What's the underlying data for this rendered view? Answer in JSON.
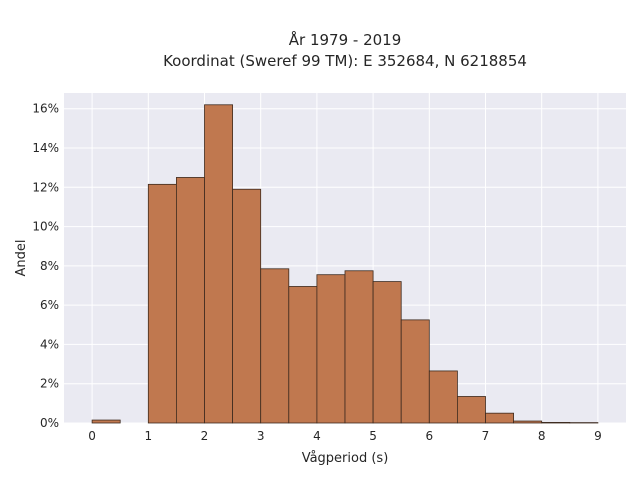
{
  "chart_data": {
    "type": "bar",
    "title_line1": "År 1979 - 2019",
    "title_line2": "Koordinat (Sweref 99 TM): E 352684, N 6218854",
    "xlabel": "Vågperiod (s)",
    "ylabel": "Andel",
    "xlim": [
      -0.5,
      9.5
    ],
    "ylim": [
      0,
      16.8
    ],
    "x_ticks": [
      0,
      1,
      2,
      3,
      4,
      5,
      6,
      7,
      8,
      9
    ],
    "y_ticks": [
      0,
      2,
      4,
      6,
      8,
      10,
      12,
      14,
      16
    ],
    "y_tick_labels": [
      "0%",
      "2%",
      "4%",
      "6%",
      "8%",
      "10%",
      "12%",
      "14%",
      "16%"
    ],
    "bin_width": 0.5,
    "bars": [
      {
        "start": 0.0,
        "value": 0.15
      },
      {
        "start": 1.0,
        "value": 12.15
      },
      {
        "start": 1.5,
        "value": 12.5
      },
      {
        "start": 2.0,
        "value": 16.2
      },
      {
        "start": 2.5,
        "value": 11.9
      },
      {
        "start": 3.0,
        "value": 7.85
      },
      {
        "start": 3.5,
        "value": 6.95
      },
      {
        "start": 4.0,
        "value": 7.55
      },
      {
        "start": 4.5,
        "value": 7.75
      },
      {
        "start": 5.0,
        "value": 7.2
      },
      {
        "start": 5.5,
        "value": 5.25
      },
      {
        "start": 6.0,
        "value": 2.65
      },
      {
        "start": 6.5,
        "value": 1.35
      },
      {
        "start": 7.0,
        "value": 0.5
      },
      {
        "start": 7.5,
        "value": 0.1
      },
      {
        "start": 8.0,
        "value": 0.03
      },
      {
        "start": 8.5,
        "value": 0.02
      }
    ],
    "bar_color": "#c0784f",
    "bar_edge_color": "#3d2a1e",
    "plot_background": "#eaeaf2",
    "grid": true,
    "grid_color": "#ffffff"
  }
}
